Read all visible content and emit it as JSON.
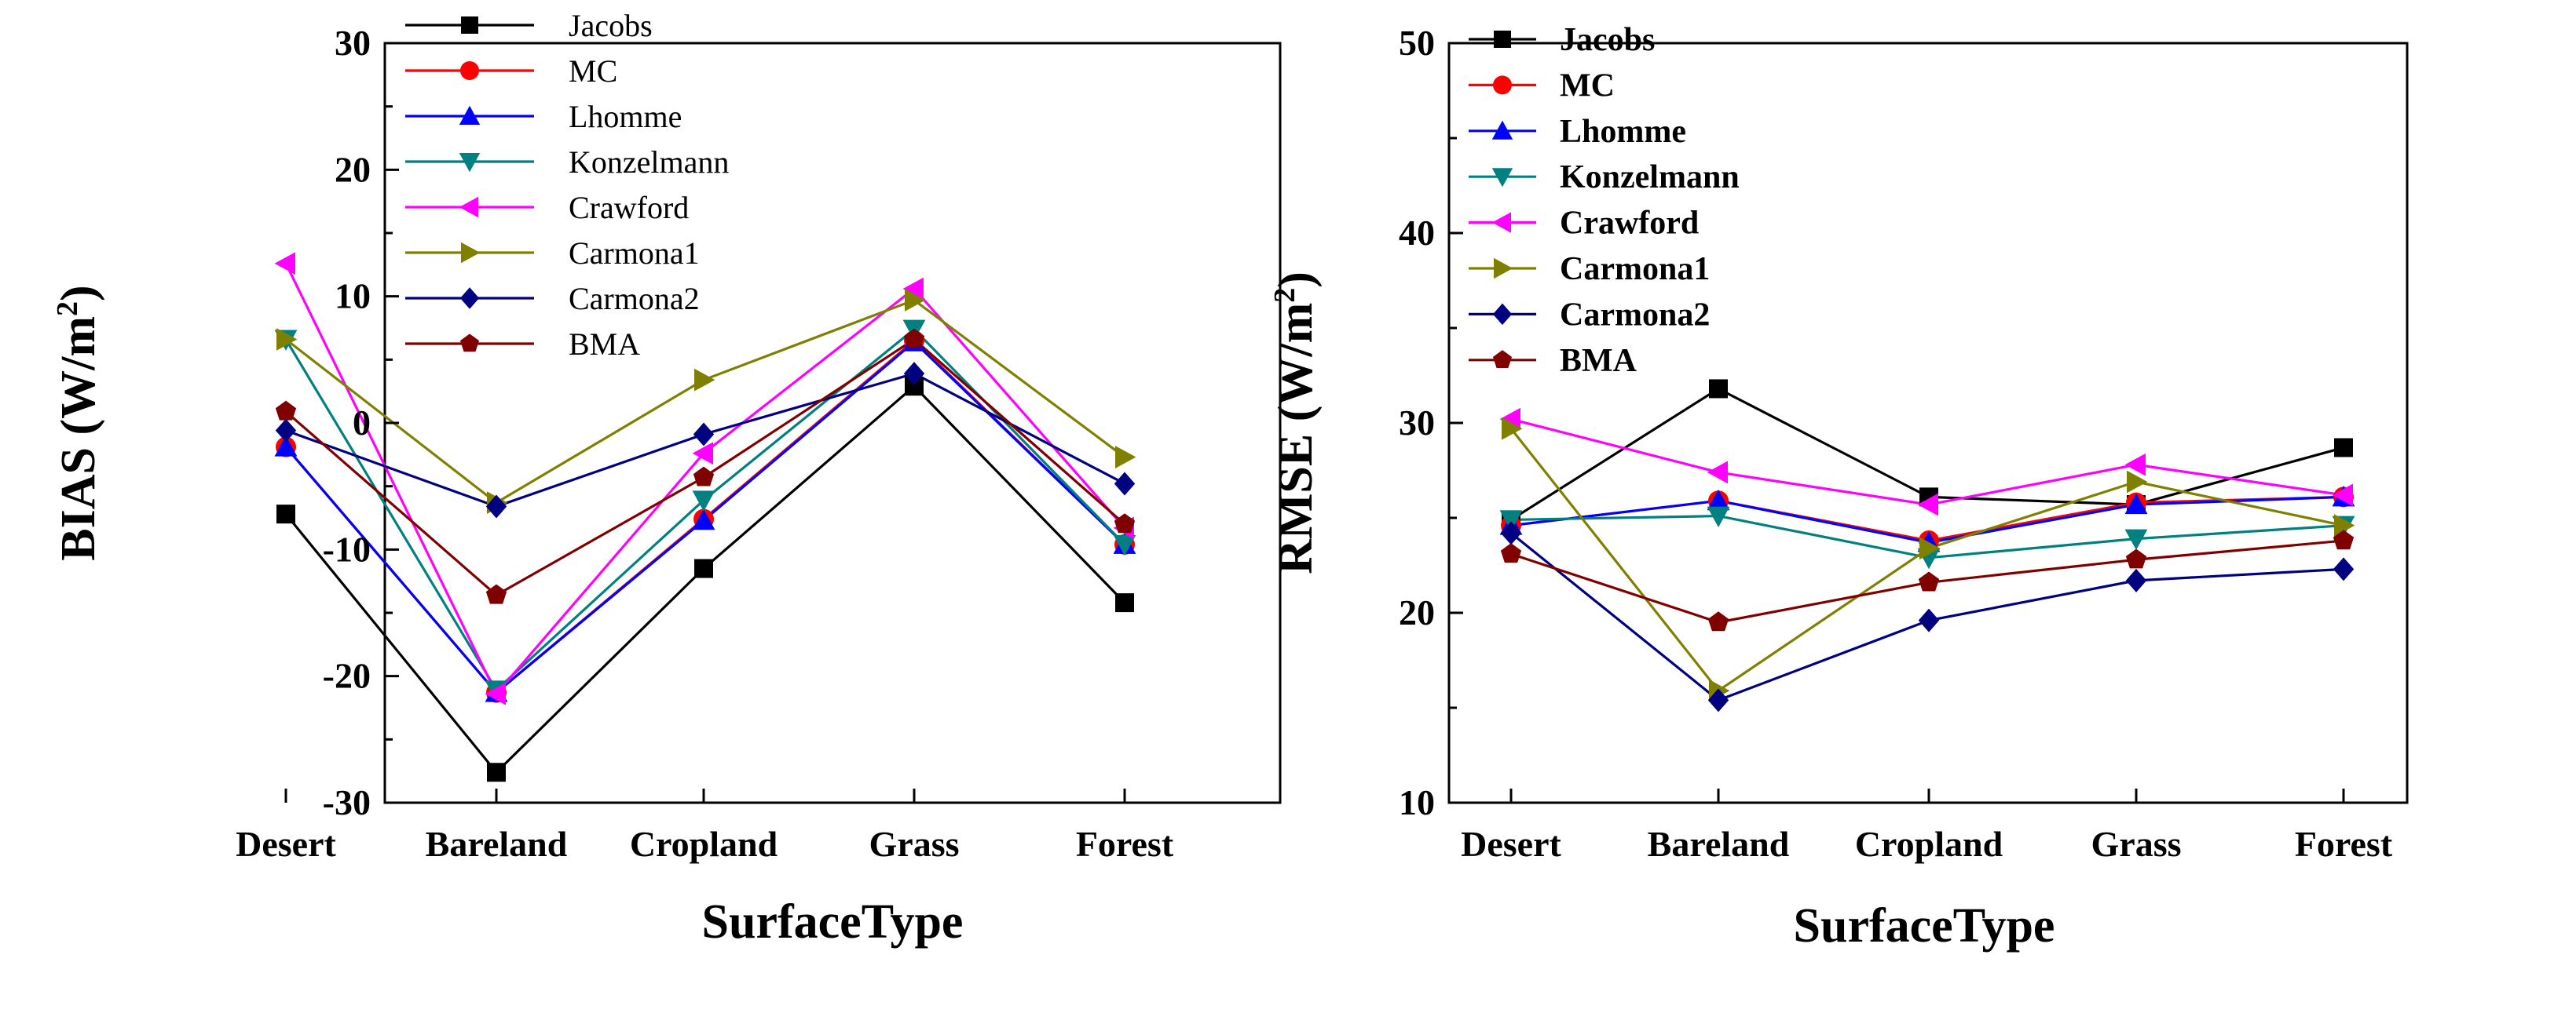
{
  "chart_data": [
    {
      "type": "line",
      "xlabel": "SurfaceType",
      "ylabel": "BIAS (W/m",
      "ylabel_sup": "2",
      "ylabel_close": ")",
      "categories": [
        "Desert",
        "Bareland",
        "Cropland",
        "Grass",
        "Forest"
      ],
      "ylim": [
        -30,
        30
      ],
      "yticks": [
        -30,
        -20,
        -10,
        0,
        10,
        20,
        30
      ],
      "ytick_labels": [
        "-30",
        "-20",
        "-10",
        "0",
        "10",
        "20",
        "30"
      ],
      "grid": false,
      "legend_position": "top-center",
      "series": [
        {
          "name": "Jacobs",
          "color": "#000000",
          "marker": "square",
          "values": [
            -7.2,
            -27.6,
            -11.5,
            2.9,
            -14.2
          ]
        },
        {
          "name": "MC",
          "color": "#ff0000",
          "marker": "circle",
          "values": [
            -1.9,
            -21.3,
            -7.6,
            6.5,
            -9.6
          ]
        },
        {
          "name": "Lhomme",
          "color": "#0000ff",
          "marker": "triangle-up",
          "values": [
            -1.9,
            -21.3,
            -7.7,
            6.4,
            -9.6
          ]
        },
        {
          "name": "Konzelmann",
          "color": "#008080",
          "marker": "triangle-down",
          "values": [
            6.6,
            -21.1,
            -6.1,
            7.4,
            -9.6
          ]
        },
        {
          "name": "Crawford",
          "color": "#ff00ff",
          "marker": "triangle-left",
          "values": [
            12.6,
            -21.4,
            -2.4,
            10.6,
            -8.3
          ]
        },
        {
          "name": "Carmona1",
          "color": "#808000",
          "marker": "triangle-right",
          "values": [
            6.6,
            -6.3,
            3.4,
            9.7,
            -2.7
          ]
        },
        {
          "name": "Carmona2",
          "color": "#000080",
          "marker": "diamond",
          "values": [
            -0.6,
            -6.6,
            -0.9,
            3.9,
            -4.8
          ]
        },
        {
          "name": "BMA",
          "color": "#800000",
          "marker": "pentagon",
          "values": [
            0.9,
            -13.6,
            -4.3,
            6.6,
            -8.0
          ]
        }
      ]
    },
    {
      "type": "line",
      "xlabel": "SurfaceType",
      "ylabel": "RMSE (W/m",
      "ylabel_sup": "2",
      "ylabel_close": ")",
      "categories": [
        "Desert",
        "Bareland",
        "Cropland",
        "Grass",
        "Forest"
      ],
      "ylim": [
        10,
        50
      ],
      "yticks": [
        10,
        20,
        30,
        40,
        50
      ],
      "ytick_labels": [
        "10",
        "20",
        "30",
        "40",
        "50"
      ],
      "grid": false,
      "legend_position": "top-left",
      "series": [
        {
          "name": "Jacobs",
          "color": "#000000",
          "marker": "square",
          "values": [
            24.9,
            31.8,
            26.1,
            25.7,
            28.7
          ]
        },
        {
          "name": "MC",
          "color": "#ff0000",
          "marker": "circle",
          "values": [
            24.6,
            25.9,
            23.8,
            25.8,
            26.1
          ]
        },
        {
          "name": "Lhomme",
          "color": "#0000ff",
          "marker": "triangle-up",
          "values": [
            24.6,
            25.9,
            23.7,
            25.7,
            26.1
          ]
        },
        {
          "name": "Konzelmann",
          "color": "#008080",
          "marker": "triangle-down",
          "values": [
            24.9,
            25.1,
            22.9,
            23.9,
            24.6
          ]
        },
        {
          "name": "Crawford",
          "color": "#ff00ff",
          "marker": "triangle-left",
          "values": [
            30.2,
            27.4,
            25.7,
            27.8,
            26.2
          ]
        },
        {
          "name": "Carmona1",
          "color": "#808000",
          "marker": "triangle-right",
          "values": [
            29.7,
            15.9,
            23.4,
            26.9,
            24.6
          ]
        },
        {
          "name": "Carmona2",
          "color": "#000080",
          "marker": "diamond",
          "values": [
            24.2,
            15.4,
            19.6,
            21.7,
            22.3
          ]
        },
        {
          "name": "BMA",
          "color": "#800000",
          "marker": "pentagon",
          "values": [
            23.1,
            19.5,
            21.6,
            22.8,
            23.8
          ]
        }
      ]
    }
  ]
}
